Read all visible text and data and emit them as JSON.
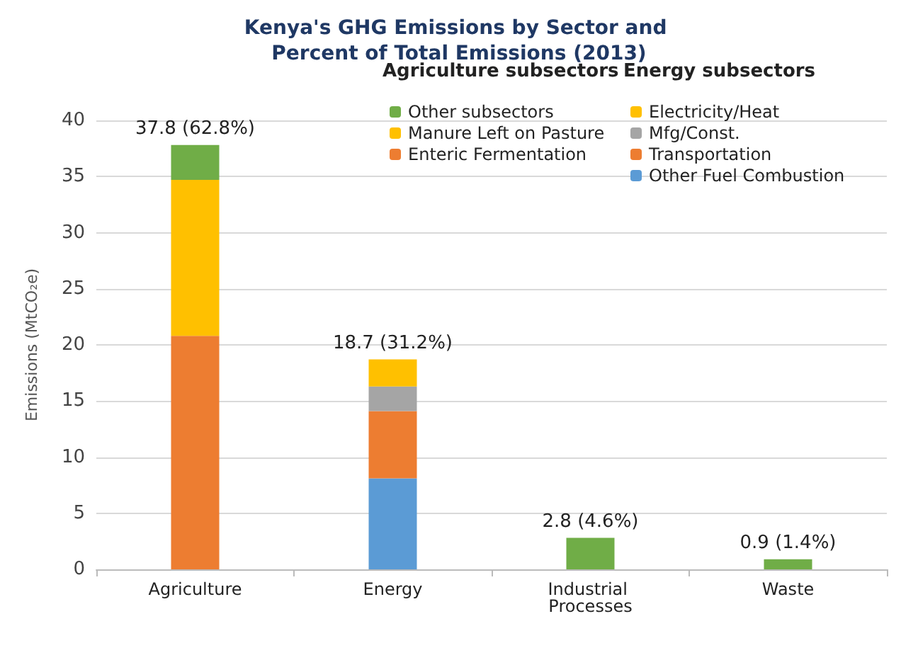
{
  "chart_data": {
    "type": "bar",
    "title": "Kenya's GHG Emissions by Sector and Percent of Total Emissions (2013)",
    "ylabel": "Emissions (MtCO₂e)",
    "categories": [
      "Agriculture",
      "Energy",
      "Industrial Processes",
      "Waste"
    ],
    "stacked": true,
    "series": [
      {
        "name": "Enteric Fermentation",
        "color": "#ed7d31",
        "values": [
          20.8,
          null,
          null,
          null
        ]
      },
      {
        "name": "Other Fuel Combustion",
        "color": "#5b9bd5",
        "values": [
          null,
          8.1,
          null,
          null
        ]
      },
      {
        "name": "Manure Left on Pasture",
        "color": "#ffc000",
        "values": [
          13.9,
          null,
          null,
          null
        ]
      },
      {
        "name": "Transportation",
        "color": "#ed7d31",
        "values": [
          null,
          6.0,
          null,
          null
        ]
      },
      {
        "name": "Mfg/Const.",
        "color": "#a5a5a5",
        "values": [
          null,
          2.2,
          null,
          null
        ]
      },
      {
        "name": "Electricity/Heat",
        "color": "#ffc000",
        "values": [
          null,
          2.4,
          null,
          null
        ]
      },
      {
        "name": "Other subsectors",
        "color": "#70ad47",
        "values": [
          3.1,
          null,
          2.8,
          0.9
        ]
      }
    ],
    "totals": [
      "37.8 (62.8%)",
      "18.7 (31.2%)",
      "2.8 (4.6%)",
      "0.9 (1.4%)"
    ],
    "annotations": [
      "Agriculture subsectors",
      "Energy subsectors"
    ],
    "ylim": [
      0,
      40
    ],
    "yticks": [
      0,
      5,
      10,
      15,
      20,
      25,
      30,
      35,
      40
    ],
    "grid": "y",
    "legend": "top right"
  }
}
